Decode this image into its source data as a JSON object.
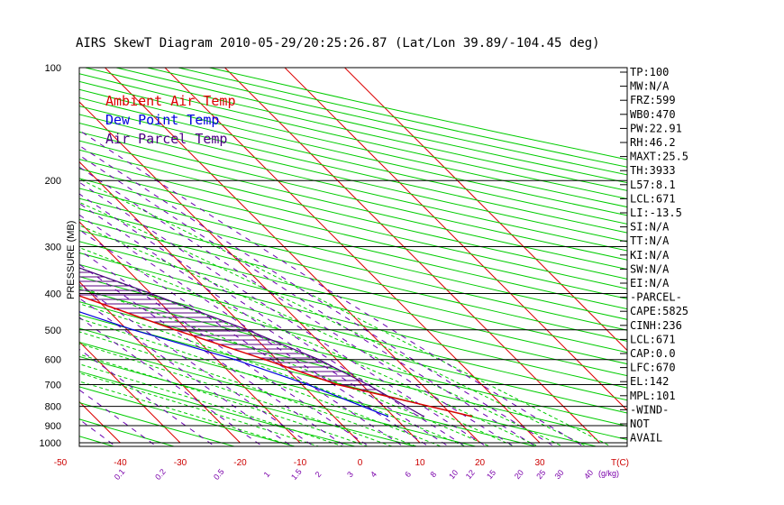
{
  "chart_data": {
    "type": "line",
    "title": "AIRS SkewT Diagram 2010-05-29/20:25:26.87 (Lat/Lon 39.89/-104.45 deg)",
    "ylabel": "PRESSURE (MB)",
    "y_scale": "log",
    "ylim": [
      1000,
      100
    ],
    "pressure_ticks": [
      100,
      200,
      300,
      400,
      500,
      600,
      700,
      800,
      900,
      1000
    ],
    "top_temp_ticks": [
      -120,
      -110,
      -100,
      -90,
      -80,
      -70,
      -60,
      -50,
      -40
    ],
    "bottom_temp_ticks": [
      -50,
      -40,
      -30,
      -20,
      -10,
      0,
      10,
      20,
      30
    ],
    "bottom_temp_unit": "T(C)",
    "mixing_ratio_ticks": [
      "0.1",
      "0.2",
      "0.5",
      "1",
      "1.5",
      "2",
      "3",
      "4",
      "6",
      "8",
      "10",
      "12",
      "15",
      "20",
      "25",
      "30",
      "40"
    ],
    "mixing_ratio_unit": "(g/kg)",
    "legend": [
      "Ambient Air Temp",
      "Dew Point Temp",
      "Air Parcel Temp"
    ],
    "series": [
      {
        "name": "Ambient Air Temp",
        "pressure": [
          850,
          700,
          600,
          500,
          400,
          300,
          250,
          200,
          150,
          120
        ],
        "temperature": [
          23,
          6,
          -2,
          -12,
          -23,
          -39,
          -51,
          -61,
          -63,
          -62
        ]
      },
      {
        "name": "Dew Point Temp",
        "pressure": [
          850,
          700,
          600,
          500,
          400,
          300,
          250,
          200,
          150,
          120,
          100
        ],
        "temperature": [
          9,
          1,
          -7,
          -19,
          -31,
          -46,
          -57,
          -70,
          -86,
          -93,
          -98
        ]
      },
      {
        "name": "Air Parcel Temp",
        "pressure": [
          850,
          700,
          600,
          500,
          400,
          300,
          250,
          200,
          150,
          120,
          100
        ],
        "temperature": [
          15,
          11,
          7,
          0,
          -10,
          -24,
          -35,
          -46,
          -63,
          -76,
          -86
        ]
      }
    ],
    "colors": {
      "ambient": "#dd0000",
      "dewpoint": "#0000dd",
      "parcel": "#4b0082",
      "isobar": "#000000",
      "isotherm": "#dd0000",
      "adiabat": "#00cc00",
      "moist_adiabat": "#00cc00",
      "mixing_ratio": "#6a00b0",
      "hatch": "#5a0080"
    }
  },
  "stats": [
    "TP:100",
    "MW:N/A",
    "FRZ:599",
    "WB0:470",
    "PW:22.91",
    "RH:46.2",
    "MAXT:25.5",
    "TH:3933",
    "L57:8.1",
    "LCL:671",
    "LI:-13.5",
    "SI:N/A",
    "TT:N/A",
    "KI:N/A",
    "SW:N/A",
    "EI:N/A",
    "-PARCEL-",
    "CAPE:5825",
    "CINH:236",
    "LCL:671",
    "CAP:0.0",
    "LFC:670",
    "EL:142",
    "MPL:101",
    "-WIND-",
    "NOT",
    "AVAIL"
  ]
}
